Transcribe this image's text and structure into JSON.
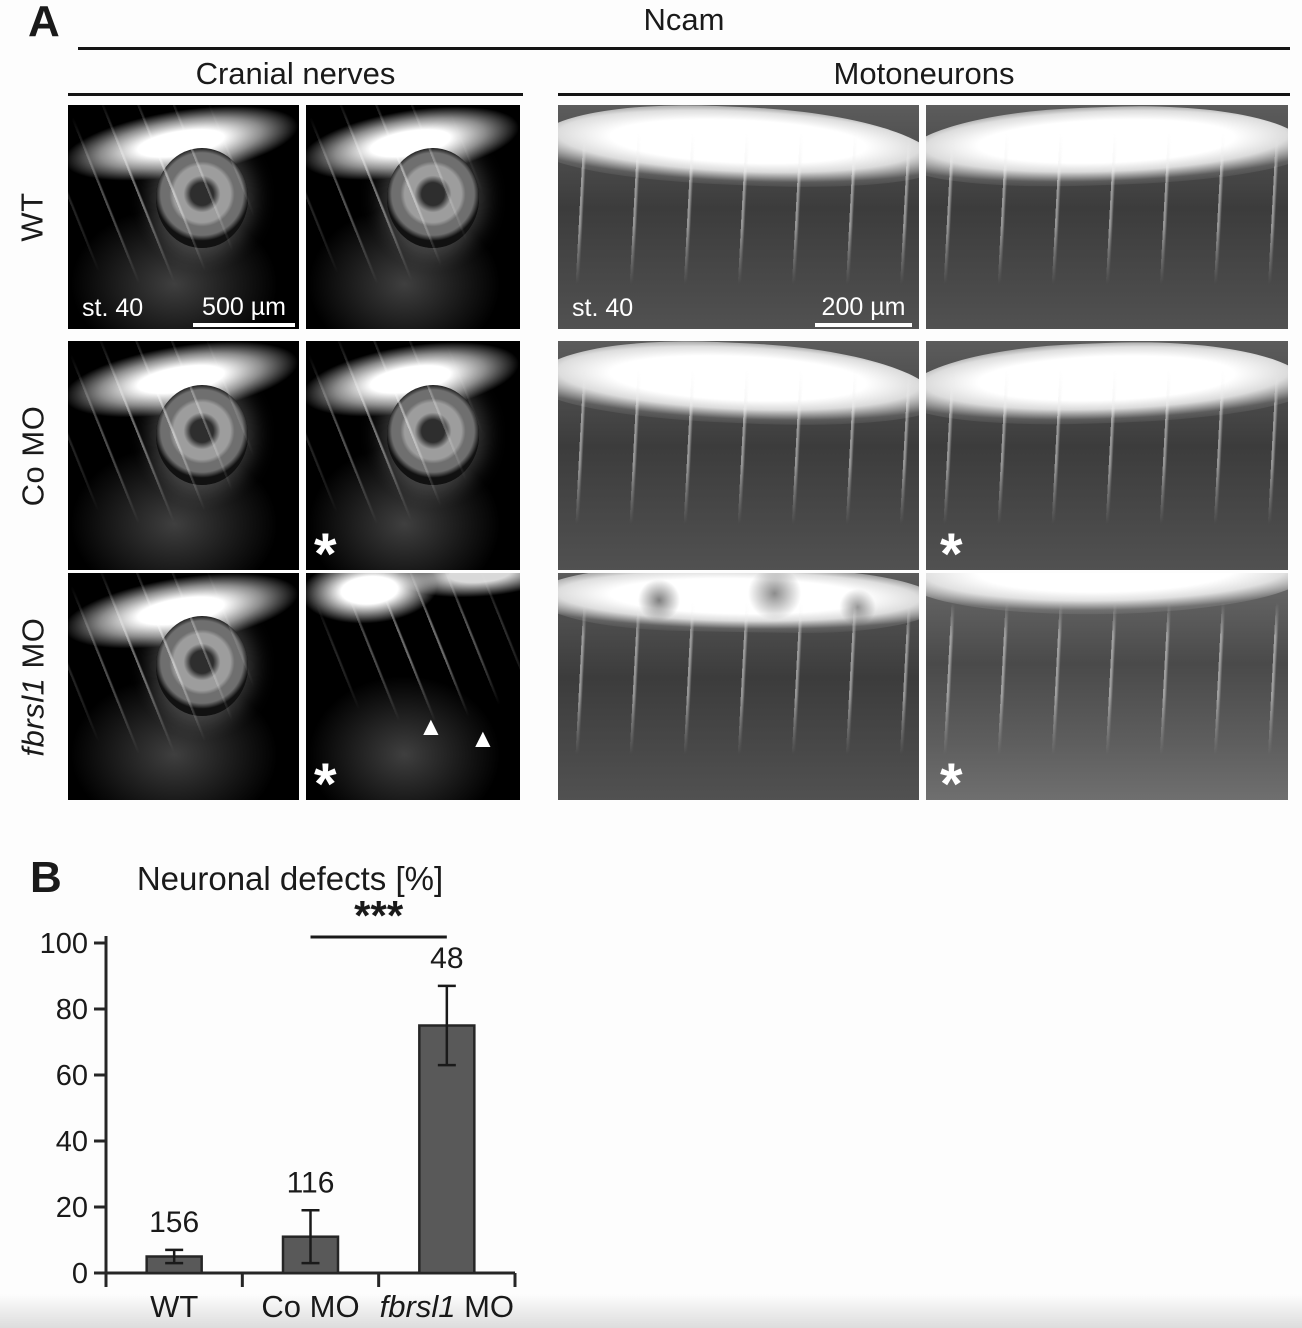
{
  "panel_a": {
    "label": "A",
    "stain_title": "Ncam",
    "column_groups": [
      "Cranial nerves",
      "Motoneurons"
    ],
    "rows": [
      {
        "gene": "",
        "label": "WT"
      },
      {
        "gene": "",
        "label": "Co MO"
      },
      {
        "gene": "fbrsl1",
        "label": " MO"
      }
    ],
    "stage_label": "st. 40",
    "scale_bars": [
      "500 µm",
      "200 µm"
    ],
    "asterisk": "*",
    "arrowhead": "▲"
  },
  "panel_b": {
    "label": "B"
  },
  "chart_data": {
    "type": "bar",
    "title": "Neuronal defects [%]",
    "categories": [
      "WT",
      "Co MO",
      "fbrsl1 MO"
    ],
    "categories_rich": [
      {
        "italic": "",
        "text": "WT"
      },
      {
        "italic": "",
        "text": "Co MO"
      },
      {
        "italic": "fbrsl1",
        "text": " MO"
      }
    ],
    "values": [
      5,
      11,
      75
    ],
    "errors": [
      2,
      8,
      12
    ],
    "n_labels": [
      "156",
      "116",
      "48"
    ],
    "ylim": [
      0,
      100
    ],
    "yticks": [
      0,
      20,
      40,
      60,
      80,
      100
    ],
    "grid": false,
    "legend": false,
    "bar_color": "#595959",
    "bar_border": "#262626",
    "axis_color": "#262626",
    "significance": {
      "between": [
        1,
        2
      ],
      "label": "***"
    }
  }
}
